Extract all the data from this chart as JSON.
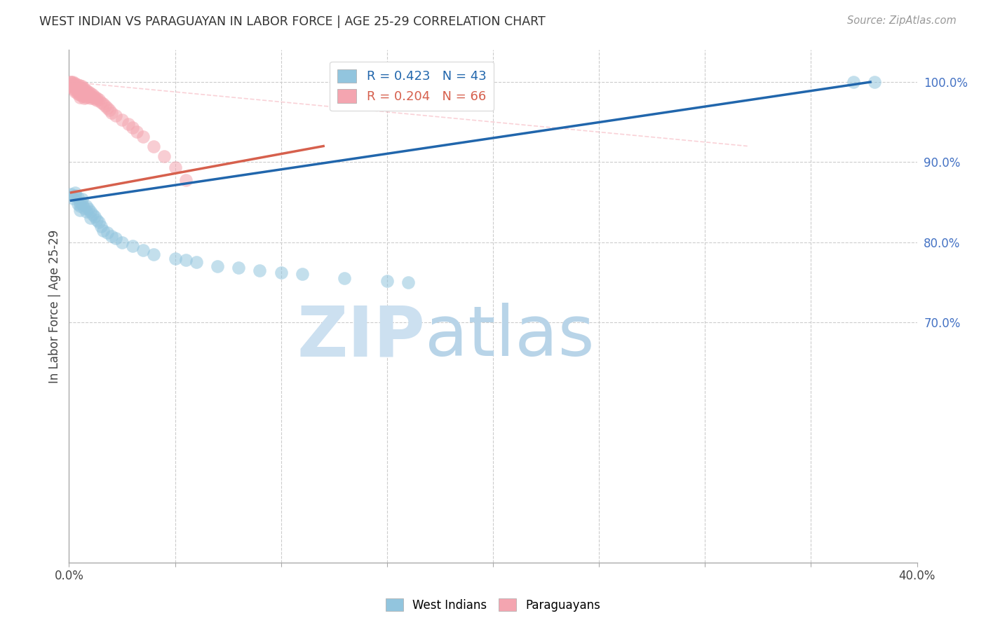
{
  "title": "WEST INDIAN VS PARAGUAYAN IN LABOR FORCE | AGE 25-29 CORRELATION CHART",
  "source": "Source: ZipAtlas.com",
  "ylabel": "In Labor Force | Age 25-29",
  "xlim": [
    0.0,
    0.4
  ],
  "ylim": [
    0.4,
    1.04
  ],
  "blue_color": "#92c5de",
  "pink_color": "#f4a5b0",
  "blue_line_color": "#2166ac",
  "pink_line_color": "#d6604d",
  "pink_dash_color": "#f4a5b0",
  "watermark_zip": "ZIP",
  "watermark_atlas": "atlas",
  "watermark_color_zip": "#c8dff0",
  "watermark_color_atlas": "#b8d4e8",
  "grid_color": "#cccccc",
  "background_color": "#ffffff",
  "legend_blue_text": "R = 0.423   N = 43",
  "legend_pink_text": "R = 0.204   N = 66",
  "west_indians_x": [
    0.001,
    0.002,
    0.003,
    0.003,
    0.004,
    0.004,
    0.005,
    0.005,
    0.005,
    0.006,
    0.006,
    0.007,
    0.008,
    0.008,
    0.009,
    0.01,
    0.01,
    0.011,
    0.012,
    0.013,
    0.014,
    0.015,
    0.016,
    0.018,
    0.02,
    0.022,
    0.025,
    0.03,
    0.035,
    0.04,
    0.05,
    0.055,
    0.06,
    0.07,
    0.08,
    0.09,
    0.1,
    0.11,
    0.13,
    0.15,
    0.16,
    0.37,
    0.38
  ],
  "west_indians_y": [
    0.86,
    0.855,
    0.858,
    0.862,
    0.856,
    0.848,
    0.85,
    0.845,
    0.84,
    0.854,
    0.848,
    0.843,
    0.838,
    0.845,
    0.842,
    0.838,
    0.83,
    0.835,
    0.832,
    0.828,
    0.825,
    0.82,
    0.815,
    0.812,
    0.808,
    0.805,
    0.8,
    0.795,
    0.79,
    0.785,
    0.78,
    0.778,
    0.775,
    0.77,
    0.768,
    0.765,
    0.762,
    0.76,
    0.755,
    0.752,
    0.75,
    1.0,
    1.0
  ],
  "paraguayans_x": [
    0.001,
    0.001,
    0.001,
    0.002,
    0.002,
    0.002,
    0.002,
    0.003,
    0.003,
    0.003,
    0.003,
    0.003,
    0.004,
    0.004,
    0.004,
    0.004,
    0.004,
    0.005,
    0.005,
    0.005,
    0.005,
    0.005,
    0.005,
    0.006,
    0.006,
    0.006,
    0.006,
    0.006,
    0.007,
    0.007,
    0.007,
    0.007,
    0.007,
    0.008,
    0.008,
    0.008,
    0.008,
    0.009,
    0.009,
    0.009,
    0.01,
    0.01,
    0.01,
    0.011,
    0.011,
    0.012,
    0.012,
    0.013,
    0.013,
    0.014,
    0.015,
    0.016,
    0.017,
    0.018,
    0.019,
    0.02,
    0.022,
    0.025,
    0.028,
    0.03,
    0.032,
    0.035,
    0.04,
    0.045,
    0.05,
    0.055
  ],
  "paraguayans_y": [
    1.0,
    1.0,
    0.995,
    1.0,
    0.998,
    0.995,
    0.992,
    0.998,
    0.996,
    0.993,
    0.99,
    0.988,
    0.997,
    0.994,
    0.991,
    0.988,
    0.985,
    0.996,
    0.993,
    0.99,
    0.987,
    0.984,
    0.981,
    0.995,
    0.992,
    0.989,
    0.986,
    0.983,
    0.992,
    0.989,
    0.986,
    0.983,
    0.98,
    0.99,
    0.987,
    0.984,
    0.981,
    0.988,
    0.985,
    0.982,
    0.986,
    0.983,
    0.98,
    0.984,
    0.981,
    0.982,
    0.979,
    0.98,
    0.977,
    0.978,
    0.975,
    0.973,
    0.97,
    0.968,
    0.965,
    0.962,
    0.958,
    0.953,
    0.948,
    0.943,
    0.938,
    0.932,
    0.92,
    0.907,
    0.893,
    0.878
  ]
}
